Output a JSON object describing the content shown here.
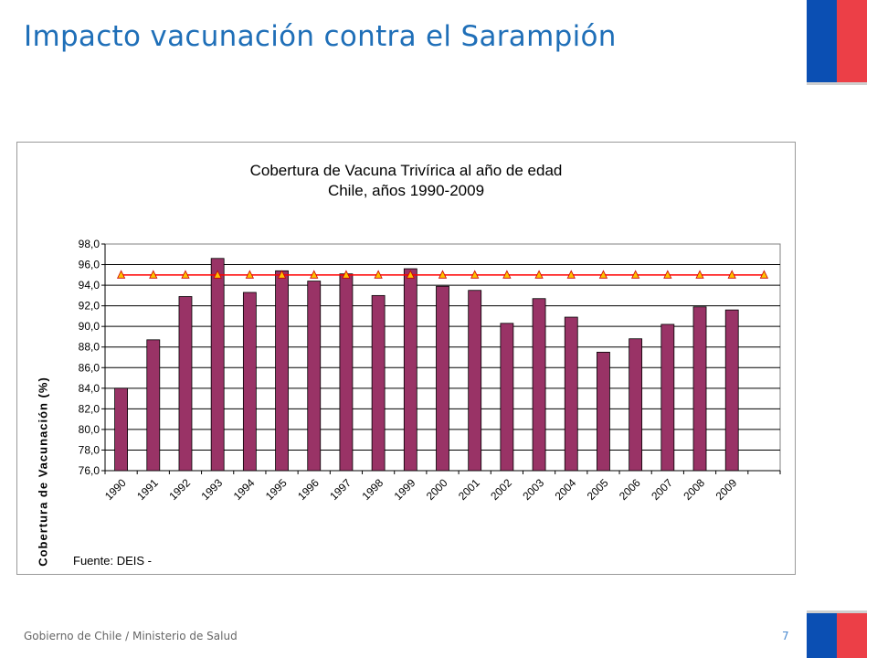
{
  "slide": {
    "title": "Impacto vacunación contra el Sarampión",
    "footer": "Gobierno de Chile / Ministerio de Salud",
    "page_number": "7",
    "colors": {
      "title": "#1f6fb8",
      "flag_blue": "#0b4fb3",
      "flag_red": "#ec3f47"
    }
  },
  "chart_data": {
    "type": "bar",
    "title": "Cobertura de Vacuna Trivírica al año de edad",
    "subtitle": "Chile, años 1990-2009",
    "ylabel": "Cobertura de Vacunación  (%)",
    "xlabel": "",
    "categories": [
      "1990",
      "1991",
      "1992",
      "1993",
      "1994",
      "1995",
      "1996",
      "1997",
      "1998",
      "1999",
      "2000",
      "2001",
      "2002",
      "2003",
      "2004",
      "2005",
      "2006",
      "2007",
      "2008",
      "2009",
      ""
    ],
    "series": [
      {
        "values": [
          84.0,
          88.7,
          92.9,
          96.6,
          93.3,
          95.4,
          94.4,
          95.1,
          93.0,
          95.6,
          93.9,
          93.5,
          90.3,
          92.7,
          90.9,
          87.5,
          88.8,
          90.2,
          91.9,
          91.6,
          null
        ],
        "color": "#993366"
      }
    ],
    "reference_line": {
      "value": 95.0,
      "color": "#ff0000",
      "marker_color": "#ffc000",
      "marker": "triangle"
    },
    "ylim": [
      76.0,
      98.0
    ],
    "yticks": [
      "76,0",
      "78,0",
      "80,0",
      "82,0",
      "84,0",
      "86,0",
      "88,0",
      "90,0",
      "92,0",
      "94,0",
      "96,0",
      "98,0"
    ],
    "grid": true,
    "legend": "none",
    "source": "Fuente:  DEIS -"
  }
}
